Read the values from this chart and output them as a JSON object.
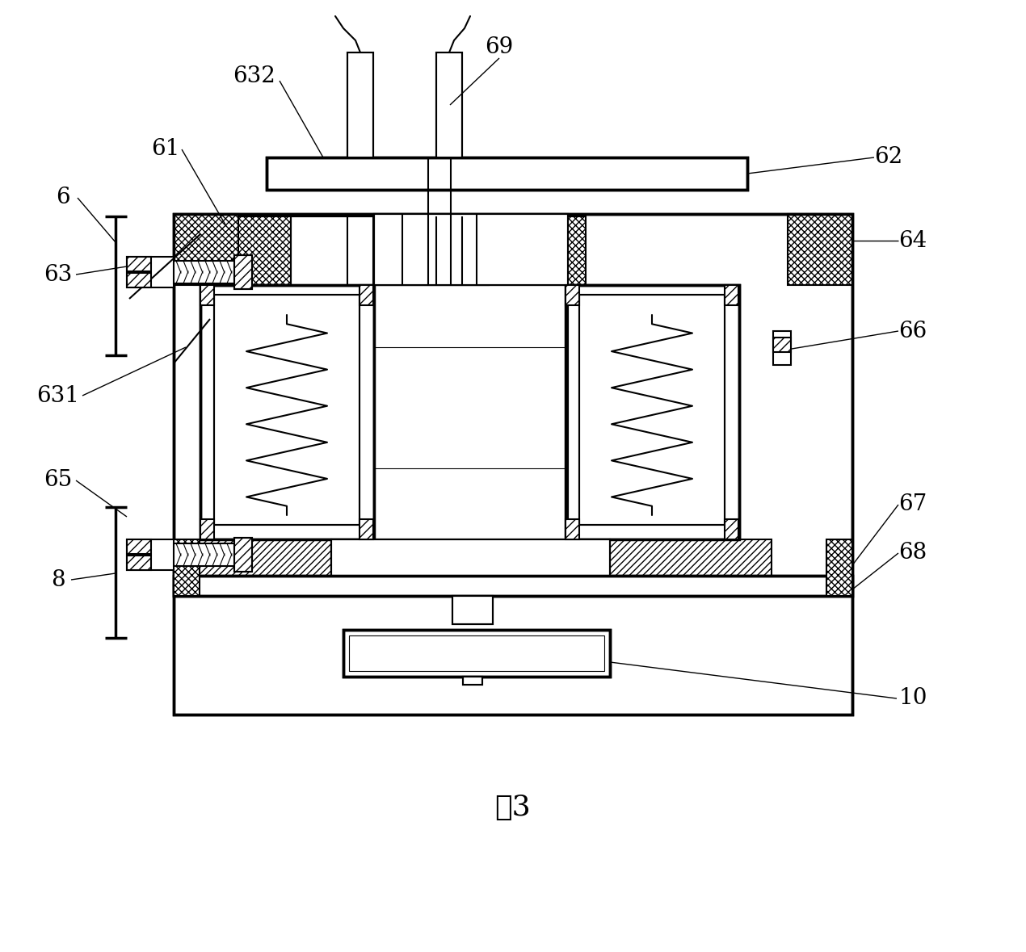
{
  "bg_color": "#ffffff",
  "figure_label": "图3",
  "lw_main": 1.5,
  "lw_thick": 2.5,
  "lw_thin": 0.8,
  "label_fs": 20,
  "fig_label_fs": 26
}
